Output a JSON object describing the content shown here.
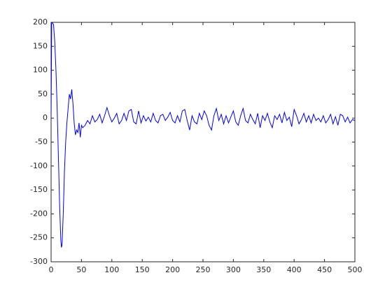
{
  "chart_data": {
    "type": "line",
    "x": [
      0,
      1,
      2,
      4,
      6,
      8,
      10,
      12,
      14,
      16,
      17,
      18,
      20,
      22,
      24,
      26,
      28,
      30,
      32,
      34,
      36,
      38,
      40,
      42,
      44,
      46,
      48,
      50,
      52,
      56,
      60,
      64,
      68,
      72,
      76,
      80,
      84,
      88,
      92,
      96,
      100,
      104,
      108,
      112,
      116,
      120,
      124,
      128,
      132,
      136,
      140,
      144,
      148,
      152,
      156,
      160,
      164,
      168,
      172,
      176,
      180,
      184,
      188,
      192,
      196,
      200,
      204,
      208,
      212,
      216,
      220,
      224,
      228,
      232,
      236,
      240,
      244,
      248,
      252,
      256,
      260,
      264,
      268,
      272,
      276,
      280,
      284,
      288,
      292,
      296,
      300,
      304,
      308,
      312,
      316,
      320,
      324,
      328,
      332,
      336,
      340,
      344,
      348,
      352,
      356,
      360,
      364,
      368,
      372,
      376,
      380,
      384,
      388,
      392,
      396,
      400,
      404,
      408,
      412,
      416,
      420,
      424,
      428,
      432,
      436,
      440,
      444,
      448,
      452,
      456,
      460,
      464,
      468,
      472,
      476,
      480,
      484,
      488,
      492,
      496,
      500
    ],
    "series": [
      {
        "color": "#0000ff",
        "values": [
          0,
          200,
          200,
          195,
          160,
          100,
          20,
          -80,
          -180,
          -255,
          -270,
          -265,
          -200,
          -110,
          -50,
          -10,
          20,
          50,
          40,
          60,
          30,
          -10,
          -35,
          -25,
          -30,
          -10,
          -40,
          -15,
          -20,
          -15,
          -5,
          -12,
          5,
          -8,
          -3,
          8,
          -10,
          5,
          22,
          5,
          -8,
          0,
          10,
          -12,
          -5,
          10,
          -5,
          15,
          18,
          -8,
          -12,
          15,
          -10,
          5,
          -6,
          2,
          -8,
          10,
          -5,
          -10,
          5,
          8,
          -5,
          2,
          12,
          -5,
          -10,
          5,
          -8,
          15,
          18,
          -5,
          -25,
          5,
          -8,
          -12,
          10,
          -3,
          15,
          5,
          -15,
          -25,
          5,
          20,
          -5,
          8,
          -12,
          5,
          -10,
          3,
          15,
          -8,
          -15,
          5,
          20,
          -5,
          -10,
          8,
          -3,
          -12,
          10,
          -20,
          5,
          -5,
          10,
          -8,
          -20,
          5,
          -3,
          8,
          -10,
          12,
          -5,
          2,
          -18,
          18,
          5,
          -12,
          -3,
          10,
          -8,
          5,
          -10,
          8,
          -5,
          0,
          -8,
          5,
          -10,
          -3,
          8,
          -12,
          3,
          -15,
          8,
          5,
          -8,
          2,
          -10,
          -3,
          -5
        ]
      }
    ],
    "xlim": [
      0,
      500
    ],
    "ylim": [
      -300,
      200
    ],
    "xticks": [
      0,
      50,
      100,
      150,
      200,
      250,
      300,
      350,
      400,
      450,
      500
    ],
    "yticks": [
      -300,
      -250,
      -200,
      -150,
      -100,
      -50,
      0,
      50,
      100,
      150,
      200
    ]
  }
}
